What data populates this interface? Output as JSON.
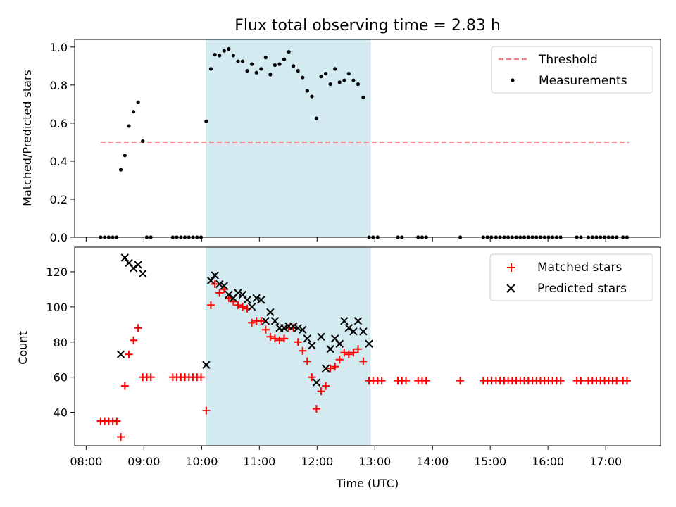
{
  "chart_data": {
    "title": "Flux total observing time = 2.83 h",
    "xlabel": "Time (UTC)",
    "x_unit": "hours UTC",
    "xlim": [
      7.8,
      17.95
    ],
    "x_ticks": [
      {
        "value": 8,
        "label": "08:00"
      },
      {
        "value": 9,
        "label": "09:00"
      },
      {
        "value": 10,
        "label": "10:00"
      },
      {
        "value": 11,
        "label": "11:00"
      },
      {
        "value": 12,
        "label": "12:00"
      },
      {
        "value": 13,
        "label": "13:00"
      },
      {
        "value": 14,
        "label": "14:00"
      },
      {
        "value": 15,
        "label": "15:00"
      },
      {
        "value": 16,
        "label": "16:00"
      },
      {
        "value": 17,
        "label": "17:00"
      }
    ],
    "highlight_span": {
      "start": 10.08,
      "end": 12.92,
      "color": "#d3eaf0"
    },
    "top": {
      "type": "scatter",
      "ylabel": "Matched/Predicted stars",
      "ylim": [
        0,
        1.04
      ],
      "y_ticks": [
        {
          "value": 0.0,
          "label": "0.0"
        },
        {
          "value": 0.2,
          "label": "0.2"
        },
        {
          "value": 0.4,
          "label": "0.4"
        },
        {
          "value": 0.6,
          "label": "0.6"
        },
        {
          "value": 0.8,
          "label": "0.8"
        },
        {
          "value": 1.0,
          "label": "1.0"
        }
      ],
      "threshold": {
        "name": "Threshold",
        "value": 0.5,
        "x_range": [
          8.25,
          17.4
        ],
        "color": "#f08080"
      },
      "measurements": {
        "name": "Measurements",
        "color": "#000000",
        "points": [
          [
            8.25,
            0
          ],
          [
            8.32,
            0
          ],
          [
            8.39,
            0
          ],
          [
            8.46,
            0
          ],
          [
            8.53,
            0
          ],
          [
            8.6,
            0.355
          ],
          [
            8.67,
            0.43
          ],
          [
            8.74,
            0.585
          ],
          [
            8.82,
            0.66
          ],
          [
            8.9,
            0.71
          ],
          [
            8.98,
            0.505
          ],
          [
            9.05,
            0
          ],
          [
            9.12,
            0
          ],
          [
            9.5,
            0
          ],
          [
            9.57,
            0
          ],
          [
            9.64,
            0
          ],
          [
            9.71,
            0
          ],
          [
            9.78,
            0
          ],
          [
            9.85,
            0
          ],
          [
            9.92,
            0
          ],
          [
            9.99,
            0
          ],
          [
            10.08,
            0.61
          ],
          [
            10.16,
            0.885
          ],
          [
            10.23,
            0.96
          ],
          [
            10.31,
            0.955
          ],
          [
            10.39,
            0.98
          ],
          [
            10.47,
            0.99
          ],
          [
            10.55,
            0.955
          ],
          [
            10.63,
            0.925
          ],
          [
            10.71,
            0.925
          ],
          [
            10.79,
            0.875
          ],
          [
            10.87,
            0.91
          ],
          [
            10.95,
            0.865
          ],
          [
            11.03,
            0.885
          ],
          [
            11.11,
            0.945
          ],
          [
            11.19,
            0.855
          ],
          [
            11.27,
            0.905
          ],
          [
            11.35,
            0.91
          ],
          [
            11.43,
            0.935
          ],
          [
            11.51,
            0.975
          ],
          [
            11.59,
            0.9
          ],
          [
            11.67,
            0.875
          ],
          [
            11.75,
            0.84
          ],
          [
            11.83,
            0.77
          ],
          [
            11.91,
            0.74
          ],
          [
            11.99,
            0.625
          ],
          [
            12.07,
            0.845
          ],
          [
            12.15,
            0.86
          ],
          [
            12.23,
            0.805
          ],
          [
            12.31,
            0.885
          ],
          [
            12.39,
            0.815
          ],
          [
            12.47,
            0.825
          ],
          [
            12.55,
            0.86
          ],
          [
            12.63,
            0.825
          ],
          [
            12.71,
            0.805
          ],
          [
            12.8,
            0.735
          ],
          [
            12.9,
            0
          ],
          [
            12.97,
            0
          ],
          [
            13.05,
            0
          ],
          [
            13.4,
            0
          ],
          [
            13.47,
            0
          ],
          [
            13.75,
            0
          ],
          [
            13.82,
            0
          ],
          [
            13.89,
            0
          ],
          [
            14.48,
            0
          ],
          [
            14.88,
            0
          ],
          [
            14.95,
            0
          ],
          [
            15.02,
            0
          ],
          [
            15.1,
            0
          ],
          [
            15.17,
            0
          ],
          [
            15.24,
            0
          ],
          [
            15.31,
            0
          ],
          [
            15.38,
            0
          ],
          [
            15.45,
            0
          ],
          [
            15.52,
            0
          ],
          [
            15.59,
            0
          ],
          [
            15.66,
            0
          ],
          [
            15.73,
            0
          ],
          [
            15.8,
            0
          ],
          [
            15.87,
            0
          ],
          [
            15.94,
            0
          ],
          [
            16.01,
            0
          ],
          [
            16.08,
            0
          ],
          [
            16.15,
            0
          ],
          [
            16.22,
            0
          ],
          [
            16.5,
            0
          ],
          [
            16.57,
            0
          ],
          [
            16.7,
            0
          ],
          [
            16.77,
            0
          ],
          [
            16.84,
            0
          ],
          [
            16.91,
            0
          ],
          [
            16.98,
            0
          ],
          [
            17.05,
            0
          ],
          [
            17.12,
            0
          ],
          [
            17.19,
            0
          ],
          [
            17.3,
            0
          ],
          [
            17.37,
            0
          ]
        ]
      },
      "legend": {
        "position": "upper right"
      }
    },
    "bottom": {
      "type": "scatter",
      "ylabel": "Count",
      "ylim": [
        21,
        134
      ],
      "y_ticks": [
        {
          "value": 40,
          "label": "40"
        },
        {
          "value": 60,
          "label": "60"
        },
        {
          "value": 80,
          "label": "80"
        },
        {
          "value": 100,
          "label": "100"
        },
        {
          "value": 120,
          "label": "120"
        }
      ],
      "series": [
        {
          "name": "Matched stars",
          "marker": "plus",
          "color": "#ff0000",
          "points": [
            [
              8.25,
              35
            ],
            [
              8.32,
              35
            ],
            [
              8.39,
              35
            ],
            [
              8.46,
              35
            ],
            [
              8.53,
              35
            ],
            [
              8.6,
              26
            ],
            [
              8.67,
              55
            ],
            [
              8.74,
              73
            ],
            [
              8.82,
              81
            ],
            [
              8.9,
              88
            ],
            [
              8.98,
              60
            ],
            [
              9.05,
              60
            ],
            [
              9.12,
              60
            ],
            [
              9.5,
              60
            ],
            [
              9.57,
              60
            ],
            [
              9.64,
              60
            ],
            [
              9.71,
              60
            ],
            [
              9.78,
              60
            ],
            [
              9.85,
              60
            ],
            [
              9.92,
              60
            ],
            [
              9.99,
              60
            ],
            [
              10.08,
              41
            ],
            [
              10.16,
              101
            ],
            [
              10.23,
              113
            ],
            [
              10.31,
              108
            ],
            [
              10.39,
              110
            ],
            [
              10.47,
              105
            ],
            [
              10.55,
              103
            ],
            [
              10.63,
              101
            ],
            [
              10.71,
              100
            ],
            [
              10.79,
              99
            ],
            [
              10.87,
              91
            ],
            [
              10.95,
              92
            ],
            [
              11.03,
              92
            ],
            [
              11.11,
              87
            ],
            [
              11.19,
              83
            ],
            [
              11.27,
              82
            ],
            [
              11.35,
              81
            ],
            [
              11.43,
              82
            ],
            [
              11.51,
              88
            ],
            [
              11.59,
              88
            ],
            [
              11.67,
              80
            ],
            [
              11.75,
              75
            ],
            [
              11.83,
              69
            ],
            [
              11.91,
              60
            ],
            [
              11.99,
              42
            ],
            [
              12.07,
              52
            ],
            [
              12.15,
              55
            ],
            [
              12.23,
              65
            ],
            [
              12.31,
              66
            ],
            [
              12.39,
              70
            ],
            [
              12.47,
              74
            ],
            [
              12.55,
              73
            ],
            [
              12.63,
              74
            ],
            [
              12.71,
              76
            ],
            [
              12.8,
              69
            ],
            [
              12.9,
              58
            ],
            [
              12.97,
              58
            ],
            [
              13.05,
              58
            ],
            [
              13.12,
              58
            ],
            [
              13.4,
              58
            ],
            [
              13.47,
              58
            ],
            [
              13.54,
              58
            ],
            [
              13.75,
              58
            ],
            [
              13.82,
              58
            ],
            [
              13.89,
              58
            ],
            [
              14.48,
              58
            ],
            [
              14.88,
              58
            ],
            [
              14.95,
              58
            ],
            [
              15.02,
              58
            ],
            [
              15.1,
              58
            ],
            [
              15.17,
              58
            ],
            [
              15.24,
              58
            ],
            [
              15.31,
              58
            ],
            [
              15.38,
              58
            ],
            [
              15.45,
              58
            ],
            [
              15.52,
              58
            ],
            [
              15.59,
              58
            ],
            [
              15.66,
              58
            ],
            [
              15.73,
              58
            ],
            [
              15.8,
              58
            ],
            [
              15.87,
              58
            ],
            [
              15.94,
              58
            ],
            [
              16.01,
              58
            ],
            [
              16.08,
              58
            ],
            [
              16.15,
              58
            ],
            [
              16.22,
              58
            ],
            [
              16.5,
              58
            ],
            [
              16.57,
              58
            ],
            [
              16.7,
              58
            ],
            [
              16.77,
              58
            ],
            [
              16.84,
              58
            ],
            [
              16.91,
              58
            ],
            [
              16.98,
              58
            ],
            [
              17.05,
              58
            ],
            [
              17.12,
              58
            ],
            [
              17.19,
              58
            ],
            [
              17.3,
              58
            ],
            [
              17.37,
              58
            ]
          ]
        },
        {
          "name": "Predicted stars",
          "marker": "x",
          "color": "#000000",
          "points": [
            [
              8.6,
              73
            ],
            [
              8.67,
              128
            ],
            [
              8.74,
              125
            ],
            [
              8.82,
              122
            ],
            [
              8.9,
              124
            ],
            [
              8.98,
              119
            ],
            [
              10.08,
              67
            ],
            [
              10.16,
              115
            ],
            [
              10.23,
              118
            ],
            [
              10.31,
              113
            ],
            [
              10.39,
              112
            ],
            [
              10.47,
              107
            ],
            [
              10.55,
              105
            ],
            [
              10.63,
              108
            ],
            [
              10.71,
              107
            ],
            [
              10.79,
              104
            ],
            [
              10.87,
              100
            ],
            [
              10.95,
              105
            ],
            [
              11.03,
              104
            ],
            [
              11.11,
              92
            ],
            [
              11.19,
              97
            ],
            [
              11.27,
              92
            ],
            [
              11.35,
              88
            ],
            [
              11.43,
              88
            ],
            [
              11.51,
              89
            ],
            [
              11.59,
              89
            ],
            [
              11.67,
              88
            ],
            [
              11.75,
              87
            ],
            [
              11.83,
              82
            ],
            [
              11.91,
              78
            ],
            [
              11.99,
              57
            ],
            [
              12.07,
              83
            ],
            [
              12.15,
              65
            ],
            [
              12.23,
              76
            ],
            [
              12.31,
              82
            ],
            [
              12.39,
              79
            ],
            [
              12.47,
              92
            ],
            [
              12.55,
              88
            ],
            [
              12.63,
              86
            ],
            [
              12.71,
              92
            ],
            [
              12.8,
              86
            ],
            [
              12.9,
              79
            ]
          ]
        }
      ],
      "legend": {
        "position": "upper right"
      }
    }
  }
}
